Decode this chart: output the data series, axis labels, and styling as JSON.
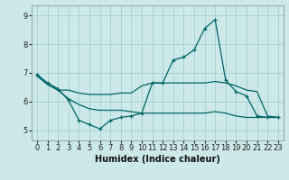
{
  "xlabel": "Humidex (Indice chaleur)",
  "bg_color": "#cce8e8",
  "grid_color": "#aad4d4",
  "line_color": "#006666",
  "xlim": [
    -0.5,
    23.5
  ],
  "ylim": [
    4.65,
    9.35
  ],
  "xticks": [
    0,
    1,
    2,
    3,
    4,
    5,
    6,
    7,
    8,
    9,
    10,
    11,
    12,
    13,
    14,
    15,
    16,
    17,
    18,
    19,
    20,
    21,
    22,
    23
  ],
  "yticks": [
    5,
    6,
    7,
    8,
    9
  ],
  "curves": [
    {
      "x": [
        0,
        1,
        2,
        3,
        4,
        5,
        6,
        7,
        8,
        9,
        10,
        11,
        12,
        13,
        14,
        15,
        16,
        17,
        18,
        19,
        20,
        21,
        22,
        23
      ],
      "y": [
        6.95,
        6.65,
        6.45,
        6.05,
        5.35,
        5.2,
        5.05,
        5.35,
        5.45,
        5.5,
        5.6,
        6.65,
        6.65,
        7.45,
        7.55,
        7.8,
        8.55,
        8.85,
        6.75,
        6.35,
        6.2,
        5.5,
        5.45,
        5.45
      ],
      "marker": true
    },
    {
      "x": [
        0,
        1,
        2,
        3,
        4,
        5,
        6,
        7,
        8,
        9,
        10,
        11,
        12,
        13,
        14,
        15,
        16,
        17,
        18,
        19,
        20,
        21,
        22,
        23
      ],
      "y": [
        6.9,
        6.6,
        6.4,
        6.4,
        6.3,
        6.25,
        6.25,
        6.25,
        6.3,
        6.3,
        6.55,
        6.65,
        6.65,
        6.65,
        6.65,
        6.65,
        6.65,
        6.7,
        6.65,
        6.55,
        6.4,
        6.35,
        5.5,
        5.45
      ],
      "marker": false
    },
    {
      "x": [
        0,
        1,
        2,
        3,
        4,
        5,
        6,
        7,
        8,
        9,
        10,
        11,
        12,
        13,
        14,
        15,
        16,
        17,
        18,
        19,
        20,
        21,
        22,
        23
      ],
      "y": [
        6.9,
        6.6,
        6.4,
        6.1,
        5.9,
        5.75,
        5.7,
        5.7,
        5.7,
        5.65,
        5.6,
        5.6,
        5.6,
        5.6,
        5.6,
        5.6,
        5.6,
        5.65,
        5.6,
        5.5,
        5.45,
        5.45,
        5.45,
        5.45
      ],
      "marker": false
    }
  ]
}
